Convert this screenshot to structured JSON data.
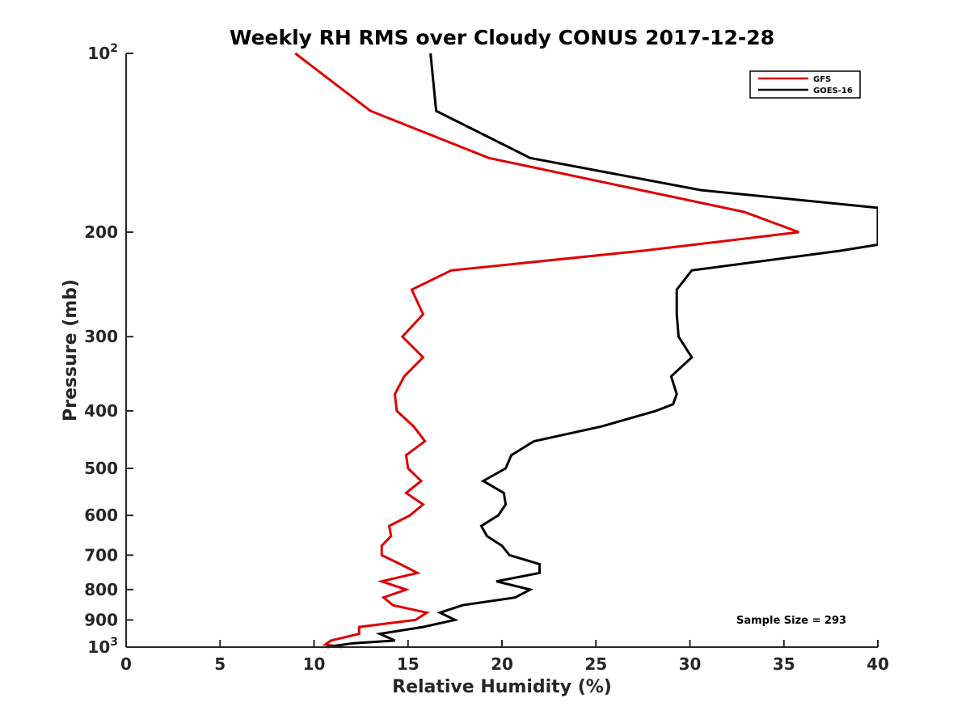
{
  "chart_data": {
    "type": "line",
    "title": "Weekly RH RMS over Cloudy CONUS 2017-12-28",
    "xlabel": "Relative Humidity (%)",
    "ylabel": "Pressure (mb)",
    "xlim": [
      0,
      40
    ],
    "ylim": [
      100,
      1000
    ],
    "y_scale": "log",
    "y_reversed": true,
    "grid": false,
    "legend_position": "top-right",
    "x_ticks": [
      0,
      5,
      10,
      15,
      20,
      25,
      30,
      35,
      40
    ],
    "x_tick_labels": [
      "0",
      "5",
      "10",
      "15",
      "20",
      "25",
      "30",
      "35",
      "40"
    ],
    "y_ticks": [
      100,
      200,
      300,
      400,
      500,
      600,
      700,
      800,
      900,
      1000
    ],
    "y_tick_labels": [
      {
        "base": "10",
        "exp": "2"
      },
      {
        "base": "200",
        "exp": ""
      },
      {
        "base": "300",
        "exp": ""
      },
      {
        "base": "400",
        "exp": ""
      },
      {
        "base": "500",
        "exp": ""
      },
      {
        "base": "600",
        "exp": ""
      },
      {
        "base": "700",
        "exp": ""
      },
      {
        "base": "800",
        "exp": ""
      },
      {
        "base": "900",
        "exp": ""
      },
      {
        "base": "10",
        "exp": "3"
      }
    ],
    "annotation": "Sample Size = 293",
    "series": [
      {
        "name": "GFS",
        "color": "#e00000",
        "points": [
          [
            9.0,
            100
          ],
          [
            13.0,
            125
          ],
          [
            19.3,
            150
          ],
          [
            32.9,
            185
          ],
          [
            35.8,
            200
          ],
          [
            27.5,
            215
          ],
          [
            17.3,
            232
          ],
          [
            15.2,
            250
          ],
          [
            15.8,
            275
          ],
          [
            14.7,
            300
          ],
          [
            15.8,
            325
          ],
          [
            14.8,
            350
          ],
          [
            14.3,
            375
          ],
          [
            14.4,
            400
          ],
          [
            15.3,
            425
          ],
          [
            15.9,
            450
          ],
          [
            14.9,
            475
          ],
          [
            15.0,
            500
          ],
          [
            15.7,
            525
          ],
          [
            14.9,
            550
          ],
          [
            15.8,
            575
          ],
          [
            15.1,
            600
          ],
          [
            14.0,
            625
          ],
          [
            14.1,
            650
          ],
          [
            13.6,
            675
          ],
          [
            13.6,
            700
          ],
          [
            14.6,
            725
          ],
          [
            15.5,
            750
          ],
          [
            13.6,
            775
          ],
          [
            14.9,
            800
          ],
          [
            13.7,
            825
          ],
          [
            14.2,
            850
          ],
          [
            16.0,
            875
          ],
          [
            15.4,
            900
          ],
          [
            12.4,
            925
          ],
          [
            12.4,
            950
          ],
          [
            10.9,
            975
          ],
          [
            10.6,
            990
          ],
          [
            11.5,
            1000
          ]
        ]
      },
      {
        "name": "GOES-16",
        "color": "#000000",
        "points": [
          [
            16.2,
            100
          ],
          [
            16.5,
            125
          ],
          [
            21.5,
            150
          ],
          [
            30.6,
            170
          ],
          [
            40.0,
            182
          ],
          [
            40.0,
            210
          ],
          [
            38.0,
            215
          ],
          [
            30.1,
            232
          ],
          [
            29.3,
            250
          ],
          [
            29.3,
            275
          ],
          [
            29.4,
            300
          ],
          [
            30.1,
            325
          ],
          [
            29.0,
            350
          ],
          [
            29.3,
            375
          ],
          [
            29.1,
            390
          ],
          [
            28.2,
            400
          ],
          [
            25.3,
            425
          ],
          [
            21.7,
            450
          ],
          [
            20.5,
            475
          ],
          [
            20.2,
            500
          ],
          [
            19.0,
            525
          ],
          [
            20.1,
            550
          ],
          [
            20.2,
            575
          ],
          [
            19.8,
            600
          ],
          [
            18.9,
            625
          ],
          [
            19.2,
            650
          ],
          [
            20.0,
            675
          ],
          [
            20.4,
            700
          ],
          [
            22.0,
            725
          ],
          [
            22.0,
            750
          ],
          [
            19.7,
            775
          ],
          [
            21.5,
            800
          ],
          [
            20.7,
            825
          ],
          [
            17.9,
            850
          ],
          [
            16.7,
            875
          ],
          [
            17.5,
            900
          ],
          [
            15.8,
            925
          ],
          [
            13.5,
            950
          ],
          [
            14.3,
            975
          ],
          [
            12.1,
            985
          ],
          [
            11.1,
            995
          ],
          [
            10.7,
            1000
          ]
        ]
      }
    ]
  }
}
